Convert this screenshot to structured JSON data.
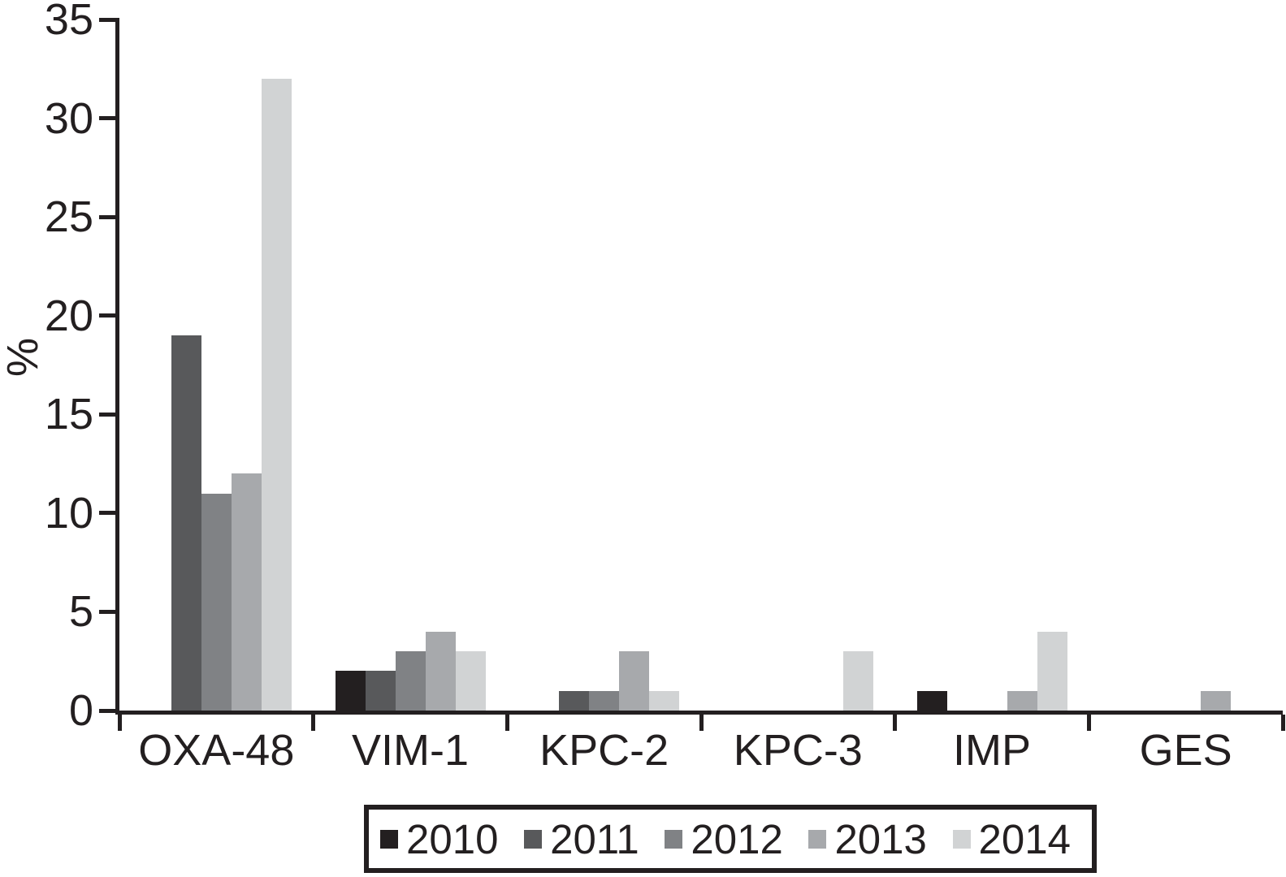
{
  "figure": {
    "background": "#ffffff"
  },
  "chart_data": {
    "type": "bar",
    "categories": [
      "OXA-48",
      "VIM-1",
      "KPC-2",
      "KPC-3",
      "IMP",
      "GES"
    ],
    "series": [
      {
        "name": "2010",
        "color": "#231f20",
        "values": [
          0,
          2,
          0,
          0,
          1,
          0
        ]
      },
      {
        "name": "2011",
        "color": "#58595b",
        "values": [
          19,
          2,
          1,
          0,
          0,
          0
        ]
      },
      {
        "name": "2012",
        "color": "#808285",
        "values": [
          11,
          3,
          1,
          0,
          0,
          0
        ]
      },
      {
        "name": "2013",
        "color": "#a7a9ac",
        "values": [
          12,
          4,
          3,
          0,
          1,
          1
        ]
      },
      {
        "name": "2014",
        "color": "#d1d3d4",
        "values": [
          32,
          3,
          1,
          3,
          4,
          0
        ]
      }
    ],
    "title": "",
    "xlabel": "",
    "ylabel": "%",
    "ylim": [
      0,
      35
    ],
    "yticks": [
      0,
      5,
      10,
      15,
      20,
      25,
      30,
      35
    ],
    "grid": false,
    "legend_position": "bottom",
    "legend_labels": [
      "2010",
      "2011",
      "2012",
      "2013",
      "2014"
    ],
    "axis_color": "#231f20",
    "text_color": "#231f20"
  }
}
